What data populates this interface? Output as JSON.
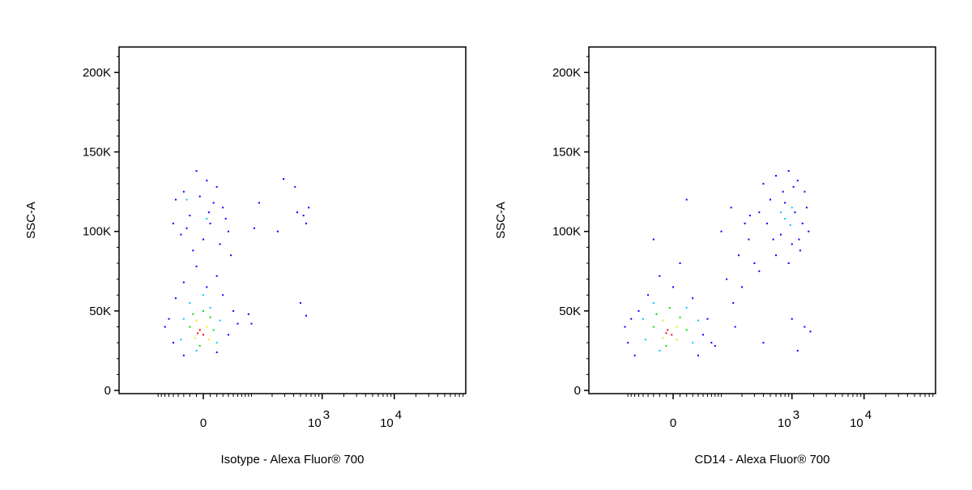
{
  "chart_data": [
    {
      "type": "scatter",
      "xscale": "biexponential",
      "xlabel": "Isotype - Alexa Fluor® 700",
      "ylabel": "SSC-A",
      "xlim": [
        -330,
        98000
      ],
      "ylim": [
        -2000,
        216000
      ],
      "xticks": [
        0,
        {
          "value": 1000,
          "label": "10",
          "exponent": "3"
        },
        {
          "value": 10000,
          "label": "10",
          "exponent": "4"
        }
      ],
      "xminorticks": [
        -90,
        -80,
        -70,
        -60,
        -50,
        -40,
        -30,
        -20,
        -10,
        10,
        20,
        30,
        40,
        50,
        60,
        70,
        80,
        90,
        100,
        200,
        300,
        400,
        500,
        600,
        700,
        800,
        900,
        2000,
        3000,
        4000,
        5000,
        6000,
        7000,
        8000,
        9000,
        20000,
        30000,
        40000,
        50000,
        60000,
        70000,
        80000,
        90000
      ],
      "yticks": [
        0,
        {
          "value": 50000,
          "label": "50K"
        },
        {
          "value": 100000,
          "label": "100K"
        },
        {
          "value": 150000,
          "label": "150K"
        },
        {
          "value": 200000,
          "label": "200K"
        }
      ],
      "yminorticks": [
        10000,
        20000,
        30000,
        40000,
        60000,
        70000,
        80000,
        90000,
        110000,
        120000,
        130000,
        140000,
        160000,
        170000,
        180000,
        190000,
        210000
      ],
      "series": [
        {
          "color": "#0000ff",
          "x": [
            -30,
            -10,
            5,
            20,
            -45,
            30,
            -20,
            10,
            40,
            -35,
            0,
            25,
            -15,
            45,
            -50,
            15,
            -5,
            35,
            -25,
            8,
            -10,
            20,
            -30,
            5,
            -60,
            -50,
            -30,
            20,
            40,
            50,
            -45,
            30,
            -70,
            60,
            130,
            290,
            420,
            550,
            600,
            650,
            450,
            240,
            110,
            500,
            600,
            90,
            100
          ],
          "values": [
            125000,
            138000,
            132000,
            128000,
            120000,
            115000,
            110000,
            105000,
            100000,
            98000,
            95000,
            92000,
            88000,
            85000,
            105000,
            118000,
            122000,
            108000,
            102000,
            112000,
            78000,
            72000,
            68000,
            65000,
            45000,
            30000,
            22000,
            24000,
            35000,
            50000,
            58000,
            60000,
            40000,
            42000,
            118000,
            133000,
            128000,
            110000,
            105000,
            115000,
            112000,
            100000,
            102000,
            55000,
            47000,
            48000,
            42000
          ]
        },
        {
          "color": "#00c8ff",
          "x": [
            -20,
            10,
            -30,
            25,
            -35,
            20,
            0,
            -10,
            -25,
            5
          ],
          "values": [
            55000,
            52000,
            45000,
            44000,
            32000,
            30000,
            60000,
            25000,
            120000,
            108000
          ]
        },
        {
          "color": "#00e000",
          "x": [
            -15,
            10,
            -20,
            15,
            0,
            -5
          ],
          "values": [
            48000,
            46000,
            40000,
            38000,
            50000,
            28000
          ]
        },
        {
          "color": "#ffe000",
          "x": [
            -10,
            5,
            -12,
            8
          ],
          "values": [
            44000,
            40000,
            33000,
            32000
          ]
        },
        {
          "color": "#ff0000",
          "x": [
            -5,
            0,
            -8
          ],
          "values": [
            38000,
            35000,
            36000
          ]
        }
      ]
    },
    {
      "type": "scatter",
      "xscale": "biexponential",
      "xlabel": "CD14 - Alexa Fluor® 700",
      "ylabel": "SSC-A",
      "xlim": [
        -330,
        98000
      ],
      "ylim": [
        -2000,
        216000
      ],
      "xticks": [
        0,
        {
          "value": 1000,
          "label": "10",
          "exponent": "3"
        },
        {
          "value": 10000,
          "label": "10",
          "exponent": "4"
        }
      ],
      "xminorticks": [
        -90,
        -80,
        -70,
        -60,
        -50,
        -40,
        -30,
        -20,
        -10,
        10,
        20,
        30,
        40,
        50,
        60,
        70,
        80,
        90,
        100,
        200,
        300,
        400,
        500,
        600,
        700,
        800,
        900,
        2000,
        3000,
        4000,
        5000,
        6000,
        7000,
        8000,
        9000,
        20000,
        30000,
        40000,
        50000,
        60000,
        70000,
        80000,
        90000
      ],
      "yticks": [
        0,
        {
          "value": 50000,
          "label": "50K"
        },
        {
          "value": 100000,
          "label": "100K"
        },
        {
          "value": 150000,
          "label": "150K"
        },
        {
          "value": 200000,
          "label": "200K"
        }
      ],
      "yminorticks": [
        10000,
        20000,
        30000,
        40000,
        60000,
        70000,
        80000,
        90000,
        110000,
        120000,
        130000,
        140000,
        160000,
        170000,
        180000,
        190000,
        210000
      ],
      "series": [
        {
          "color": "#0000ff",
          "x": [
            -100,
            -90,
            -70,
            -60,
            -40,
            0,
            30,
            60,
            70,
            40,
            -80,
            50,
            -20,
            10,
            20,
            -30,
            120,
            180,
            250,
            150,
            200,
            300,
            350,
            100,
            140,
            220,
            80,
            160,
            400,
            1500,
            1200,
            1800,
            1000,
            260,
            400,
            600,
            900,
            1200,
            1500,
            500,
            800,
            1100,
            1400,
            1700,
            450,
            700,
            1000,
            1300,
            600,
            900,
            350,
            1600,
            750,
            1050,
            550,
            1250
          ],
          "values": [
            40000,
            30000,
            22000,
            50000,
            60000,
            65000,
            58000,
            45000,
            30000,
            22000,
            45000,
            35000,
            72000,
            80000,
            120000,
            95000,
            70000,
            85000,
            95000,
            55000,
            65000,
            80000,
            75000,
            100000,
            115000,
            105000,
            28000,
            40000,
            30000,
            40000,
            25000,
            37000,
            45000,
            110000,
            130000,
            135000,
            138000,
            132000,
            125000,
            120000,
            118000,
            112000,
            105000,
            100000,
            105000,
            98000,
            92000,
            88000,
            85000,
            80000,
            112000,
            115000,
            125000,
            128000,
            95000,
            95000
          ]
        },
        {
          "color": "#00c8ff",
          "x": [
            800,
            950,
            700,
            1000,
            -30,
            20,
            -50,
            40,
            -45,
            30,
            -20
          ],
          "values": [
            108000,
            104000,
            112000,
            115000,
            55000,
            52000,
            45000,
            44000,
            32000,
            30000,
            25000
          ]
        },
        {
          "color": "#00e000",
          "x": [
            -25,
            10,
            -30,
            20,
            -5,
            -10
          ],
          "values": [
            48000,
            46000,
            40000,
            38000,
            52000,
            28000
          ]
        },
        {
          "color": "#ffe000",
          "x": [
            -15,
            5,
            -15,
            5
          ],
          "values": [
            44000,
            40000,
            33000,
            32000
          ]
        },
        {
          "color": "#ff0000",
          "x": [
            -8,
            -2,
            -10
          ],
          "values": [
            38000,
            35000,
            36000
          ]
        }
      ]
    }
  ]
}
